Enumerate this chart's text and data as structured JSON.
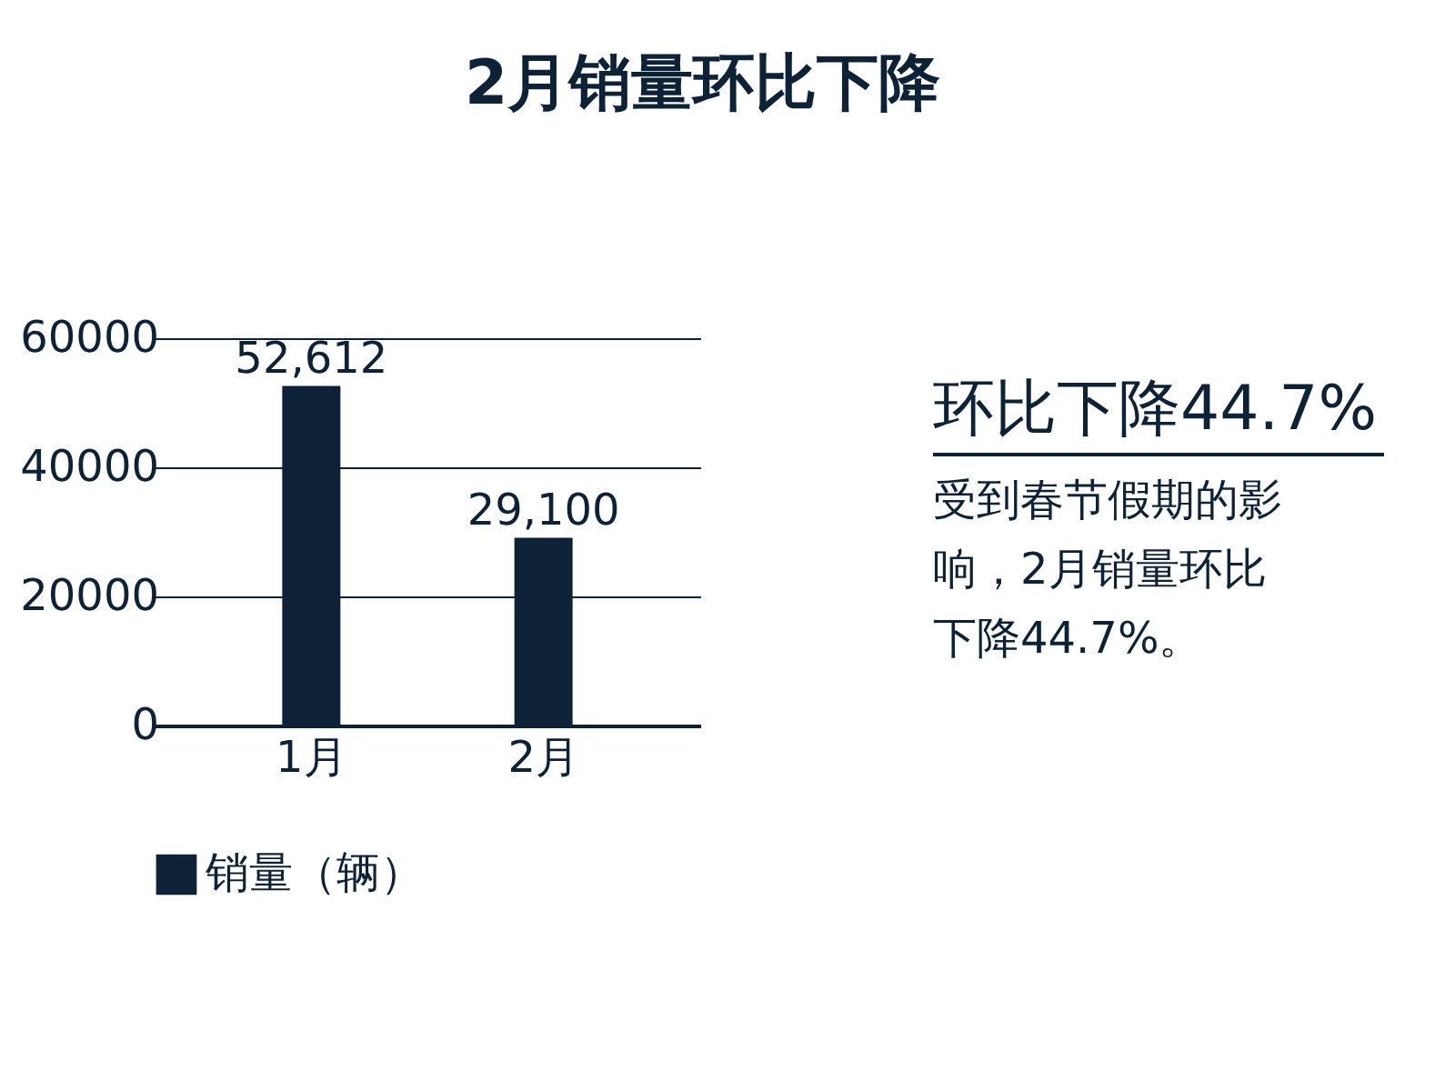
{
  "chart_data": {
    "type": "bar",
    "title": "2月销量环比下降",
    "categories": [
      "1月",
      "2月"
    ],
    "series": [
      {
        "name": "销量（辆）",
        "color": "#0d2137",
        "values": [
          52612,
          29100
        ],
        "value_labels": [
          "52,612",
          "29,100"
        ]
      }
    ],
    "ylim": [
      0,
      60000
    ],
    "yticks": [
      0,
      20000,
      40000,
      60000
    ],
    "grid": "y",
    "legend": "bottom",
    "annotations": [
      "环比下降44.7%",
      "受到春节假期的影响，2月销量环比下降44.7%。"
    ]
  }
}
